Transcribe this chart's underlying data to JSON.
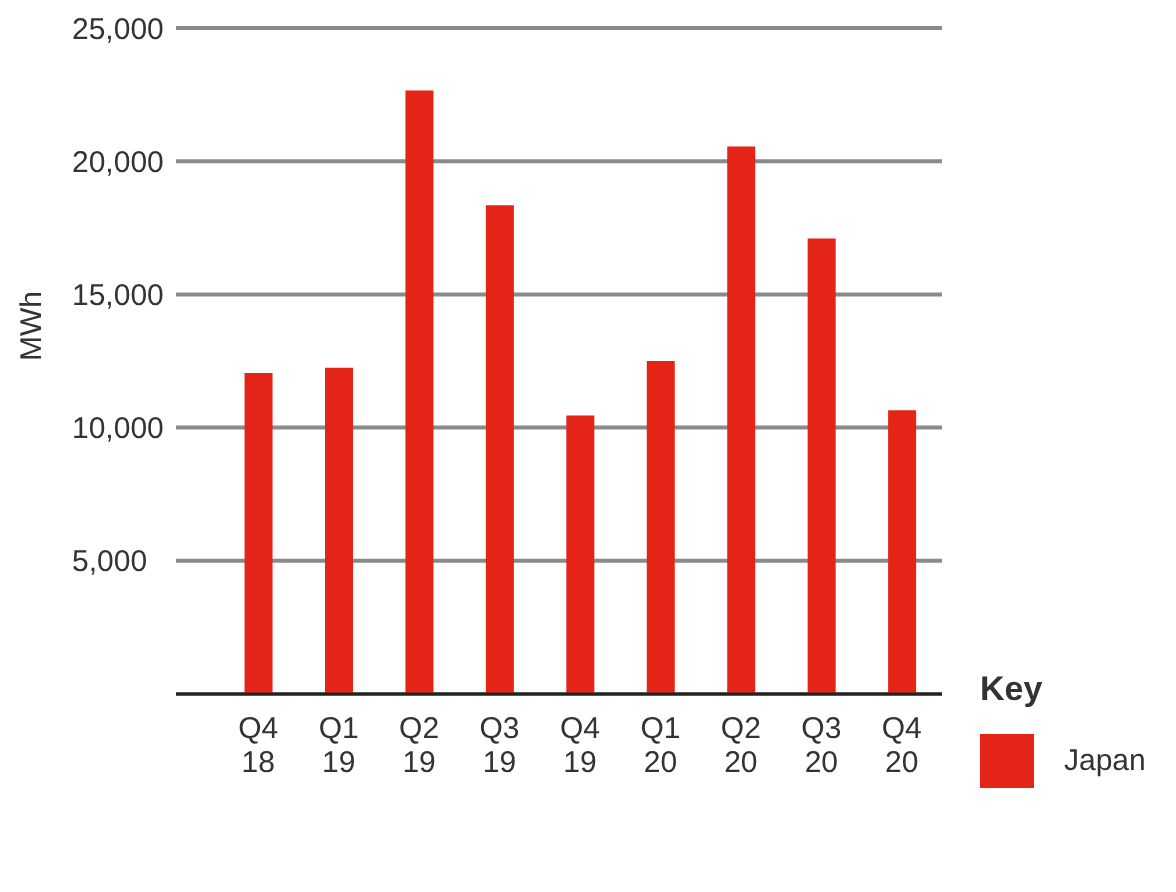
{
  "chart_data": {
    "type": "bar",
    "ylabel": "MWh",
    "legend_title": "Key",
    "categories": [
      "Q4 18",
      "Q1 19",
      "Q2 19",
      "Q3 19",
      "Q4 19",
      "Q1 20",
      "Q2 20",
      "Q3 20",
      "Q4 20"
    ],
    "series": [
      {
        "name": "Japan",
        "color": "#e32417",
        "values": [
          12050,
          12250,
          22650,
          18350,
          10450,
          12500,
          20550,
          17100,
          10650
        ]
      }
    ],
    "ylim": [
      0,
      25000
    ],
    "yticks": [
      {
        "value": 5000,
        "label": "5,000"
      },
      {
        "value": 10000,
        "label": "10,000"
      },
      {
        "value": 15000,
        "label": "15,000"
      },
      {
        "value": 20000,
        "label": "20,000"
      },
      {
        "value": 25000,
        "label": "25,000"
      }
    ],
    "grid": "y",
    "legend": "bottom right"
  }
}
